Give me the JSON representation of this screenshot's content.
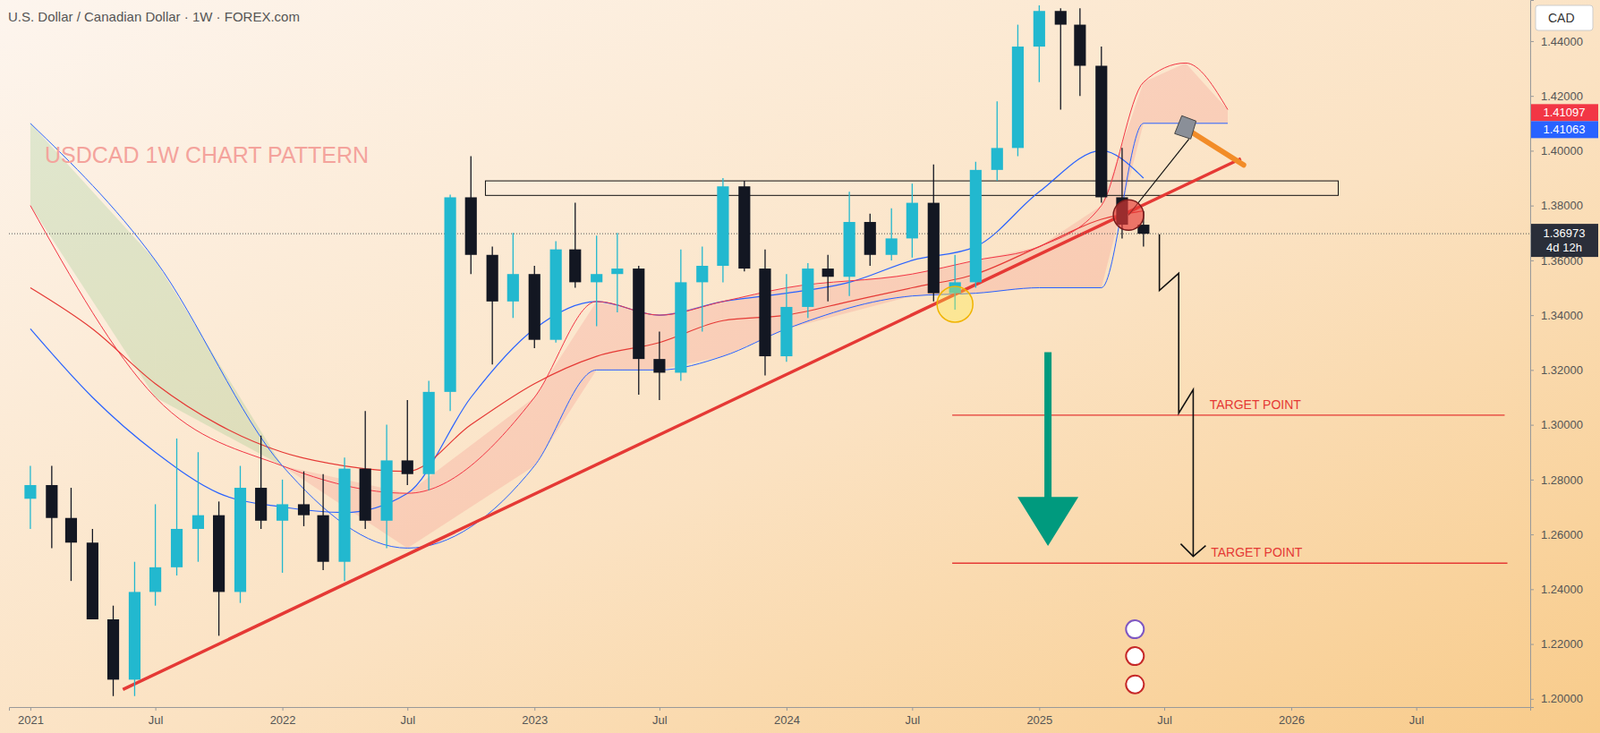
{
  "chart_data": {
    "type": "candlestick",
    "title": "U.S. Dollar / Canadian Dollar · 1W · FOREX.com",
    "annotation": "USDCAD 1W CHART PATTERN",
    "currency": "CAD",
    "x": [
      "2021-01-01",
      "2021-02-01",
      "2021-03-01",
      "2021-04-01",
      "2021-05-01",
      "2021-06-01",
      "2021-07-01",
      "2021-08-01",
      "2021-09-01",
      "2021-10-01",
      "2021-11-01",
      "2021-12-01",
      "2022-01-01",
      "2022-02-01",
      "2022-03-01",
      "2022-04-01",
      "2022-05-01",
      "2022-06-01",
      "2022-07-01",
      "2022-08-01",
      "2022-09-01",
      "2022-10-01",
      "2022-11-01",
      "2022-12-01",
      "2023-01-01",
      "2023-02-01",
      "2023-03-01",
      "2023-04-01",
      "2023-05-01",
      "2023-06-01",
      "2023-07-01",
      "2023-08-01",
      "2023-09-01",
      "2023-10-01",
      "2023-11-01",
      "2023-12-01",
      "2024-01-01",
      "2024-02-01",
      "2024-03-01",
      "2024-04-01",
      "2024-05-01",
      "2024-06-01",
      "2024-07-01",
      "2024-08-01",
      "2024-09-01",
      "2024-10-01",
      "2024-11-01",
      "2024-12-01",
      "2025-01-01",
      "2025-02-01",
      "2025-03-01",
      "2025-04-01",
      "2025-05-01",
      "2025-06-01"
    ],
    "open": [
      1.273,
      1.278,
      1.266,
      1.257,
      1.229,
      1.207,
      1.239,
      1.248,
      1.262,
      1.267,
      1.239,
      1.277,
      1.265,
      1.271,
      1.267,
      1.25,
      1.284,
      1.265,
      1.287,
      1.282,
      1.312,
      1.383,
      1.362,
      1.345,
      1.355,
      1.331,
      1.364,
      1.352,
      1.355,
      1.357,
      1.324,
      1.319,
      1.352,
      1.358,
      1.387,
      1.357,
      1.325,
      1.343,
      1.357,
      1.354,
      1.374,
      1.362,
      1.368,
      1.381,
      1.348,
      1.352,
      1.393,
      1.401,
      1.438,
      1.451,
      1.446,
      1.431,
      1.383,
      1.373
    ],
    "high": [
      1.285,
      1.285,
      1.277,
      1.262,
      1.234,
      1.25,
      1.271,
      1.295,
      1.29,
      1.272,
      1.285,
      1.296,
      1.28,
      1.283,
      1.282,
      1.288,
      1.305,
      1.3,
      1.309,
      1.316,
      1.384,
      1.398,
      1.365,
      1.37,
      1.358,
      1.367,
      1.381,
      1.369,
      1.37,
      1.358,
      1.334,
      1.364,
      1.365,
      1.39,
      1.389,
      1.364,
      1.355,
      1.359,
      1.362,
      1.385,
      1.377,
      1.379,
      1.388,
      1.395,
      1.362,
      1.396,
      1.418,
      1.446,
      1.453,
      1.452,
      1.452,
      1.438,
      1.401,
      1.378
    ],
    "low": [
      1.262,
      1.255,
      1.243,
      1.229,
      1.201,
      1.201,
      1.234,
      1.245,
      1.25,
      1.223,
      1.235,
      1.262,
      1.246,
      1.263,
      1.247,
      1.243,
      1.262,
      1.255,
      1.278,
      1.276,
      1.305,
      1.355,
      1.322,
      1.339,
      1.328,
      1.33,
      1.35,
      1.336,
      1.341,
      1.311,
      1.309,
      1.316,
      1.334,
      1.352,
      1.356,
      1.318,
      1.323,
      1.339,
      1.345,
      1.347,
      1.358,
      1.36,
      1.361,
      1.345,
      1.342,
      1.35,
      1.389,
      1.398,
      1.425,
      1.415,
      1.42,
      1.381,
      1.368,
      1.365
    ],
    "close": [
      1.278,
      1.266,
      1.257,
      1.229,
      1.207,
      1.239,
      1.248,
      1.262,
      1.267,
      1.239,
      1.277,
      1.265,
      1.271,
      1.267,
      1.25,
      1.284,
      1.265,
      1.287,
      1.282,
      1.312,
      1.383,
      1.362,
      1.345,
      1.355,
      1.331,
      1.364,
      1.352,
      1.355,
      1.357,
      1.324,
      1.319,
      1.352,
      1.358,
      1.387,
      1.357,
      1.325,
      1.343,
      1.357,
      1.354,
      1.374,
      1.362,
      1.368,
      1.381,
      1.348,
      1.352,
      1.393,
      1.401,
      1.438,
      1.451,
      1.446,
      1.431,
      1.383,
      1.373,
      1.3697
    ],
    "xlim": [
      "2020-12-01",
      "2026-12-13"
    ],
    "ylim": [
      1.197,
      1.455
    ],
    "xticks": [
      {
        "value": "2021-01-01",
        "label": "2021"
      },
      {
        "value": "2021-07-01",
        "label": "Jul"
      },
      {
        "value": "2022-01-01",
        "label": "2022"
      },
      {
        "value": "2022-07-01",
        "label": "Jul"
      },
      {
        "value": "2023-01-01",
        "label": "2023"
      },
      {
        "value": "2023-07-01",
        "label": "Jul"
      },
      {
        "value": "2024-01-01",
        "label": "2024"
      },
      {
        "value": "2024-07-01",
        "label": "Jul"
      },
      {
        "value": "2025-01-01",
        "label": "2025"
      },
      {
        "value": "2025-07-01",
        "label": "Jul"
      },
      {
        "value": "2026-01-01",
        "label": "2026"
      },
      {
        "value": "2026-07-01",
        "label": "Jul"
      }
    ],
    "yticks": [
      {
        "value": 1.2,
        "label": "1.20000"
      },
      {
        "value": 1.22,
        "label": "1.22000"
      },
      {
        "value": 1.24,
        "label": "1.24000"
      },
      {
        "value": 1.26,
        "label": "1.26000"
      },
      {
        "value": 1.28,
        "label": "1.28000"
      },
      {
        "value": 1.3,
        "label": "1.30000"
      },
      {
        "value": 1.32,
        "label": "1.32000"
      },
      {
        "value": 1.34,
        "label": "1.34000"
      },
      {
        "value": 1.36,
        "label": "1.36000"
      },
      {
        "value": 1.38,
        "label": "1.38000"
      },
      {
        "value": 1.4,
        "label": "1.40000"
      },
      {
        "value": 1.42,
        "label": "1.42000"
      },
      {
        "value": 1.44,
        "label": "1.44000"
      }
    ],
    "grid": false,
    "series": [
      {
        "type": "line",
        "color": "#2962ff",
        "x": [
          "2021-01-01",
          "2021-04-01",
          "2021-07-01",
          "2021-10-01",
          "2022-01-01",
          "2022-04-01",
          "2022-07-01",
          "2022-10-01",
          "2023-01-01",
          "2023-04-01",
          "2023-07-01",
          "2023-10-01",
          "2024-01-01",
          "2024-04-01",
          "2024-07-01",
          "2024-10-01",
          "2025-01-01",
          "2025-04-01",
          "2025-06-01"
        ],
        "values": [
          1.335,
          1.31,
          1.29,
          1.275,
          1.27,
          1.268,
          1.275,
          1.31,
          1.335,
          1.345,
          1.34,
          1.345,
          1.348,
          1.352,
          1.36,
          1.365,
          1.385,
          1.4,
          1.39
        ]
      },
      {
        "type": "line",
        "color": "#e53935",
        "x": [
          "2021-01-01",
          "2021-04-01",
          "2021-07-01",
          "2021-10-01",
          "2022-01-01",
          "2022-04-01",
          "2022-07-01",
          "2022-10-01",
          "2023-01-01",
          "2023-04-01",
          "2023-07-01",
          "2023-10-01",
          "2024-01-01",
          "2024-04-01",
          "2024-07-01",
          "2024-10-01",
          "2025-01-01",
          "2025-04-01",
          "2025-06-01"
        ],
        "values": [
          1.35,
          1.335,
          1.315,
          1.3,
          1.29,
          1.285,
          1.283,
          1.3,
          1.315,
          1.325,
          1.33,
          1.338,
          1.34,
          1.345,
          1.35,
          1.355,
          1.365,
          1.375,
          1.378
        ]
      },
      {
        "type": "span",
        "color": "#f23645",
        "x": [
          "2021-01-01",
          "2021-07-01",
          "2022-01-01",
          "2022-07-01",
          "2023-01-01",
          "2023-04-01",
          "2023-07-01",
          "2023-10-01",
          "2024-01-01",
          "2024-07-01",
          "2024-10-01",
          "2025-01-01",
          "2025-04-01",
          "2025-06-01",
          "2025-08-01",
          "2025-10-01"
        ],
        "values": [
          1.38,
          1.31,
          1.285,
          1.275,
          1.31,
          1.345,
          1.34,
          1.345,
          1.35,
          1.355,
          1.36,
          1.365,
          1.38,
          1.425,
          1.432,
          1.415
        ]
      },
      {
        "type": "span",
        "color": "#2962ff",
        "x": [
          "2021-01-01",
          "2021-07-01",
          "2022-01-01",
          "2022-07-01",
          "2023-01-01",
          "2023-04-01",
          "2023-07-01",
          "2023-10-01",
          "2024-01-01",
          "2024-07-01",
          "2024-10-01",
          "2025-01-01",
          "2025-04-01",
          "2025-06-01",
          "2025-08-01",
          "2025-10-01"
        ],
        "values": [
          1.41,
          1.36,
          1.285,
          1.255,
          1.285,
          1.32,
          1.32,
          1.325,
          1.335,
          1.347,
          1.348,
          1.35,
          1.35,
          1.41,
          1.41,
          1.41
        ]
      }
    ],
    "trendline": {
      "x": [
        "2021-05-15",
        "2025-10-20"
      ],
      "values": [
        1.2034,
        1.3971
      ],
      "color": "#e53935"
    },
    "zone": {
      "x": [
        "2022-10-22",
        "2026-03-10"
      ],
      "values": [
        1.3837,
        1.389
      ]
    },
    "targets": [
      {
        "label": "TARGET POINT",
        "value": 1.3035,
        "x": [
          "2024-08-28",
          "2026-11-06"
        ],
        "color": "#e53935"
      },
      {
        "label": "TARGET POINT",
        "value": 1.2495,
        "x": [
          "2024-08-28",
          "2026-11-10"
        ],
        "color": "#e53935"
      }
    ],
    "projection": {
      "x": [
        "2025-06-24",
        "2025-06-24",
        "2025-07-22",
        "2025-07-22",
        "2025-08-12",
        "2025-08-12"
      ],
      "values": [
        1.3695,
        1.349,
        1.3553,
        1.3042,
        1.3128,
        1.252
      ]
    },
    "price_labels": [
      {
        "value": 1.41097,
        "color": "#f23645"
      },
      {
        "value": 1.41063,
        "color": "#2962ff"
      },
      {
        "value": 1.36973,
        "color": "#2a2e39",
        "note": "4d 12h"
      }
    ]
  }
}
